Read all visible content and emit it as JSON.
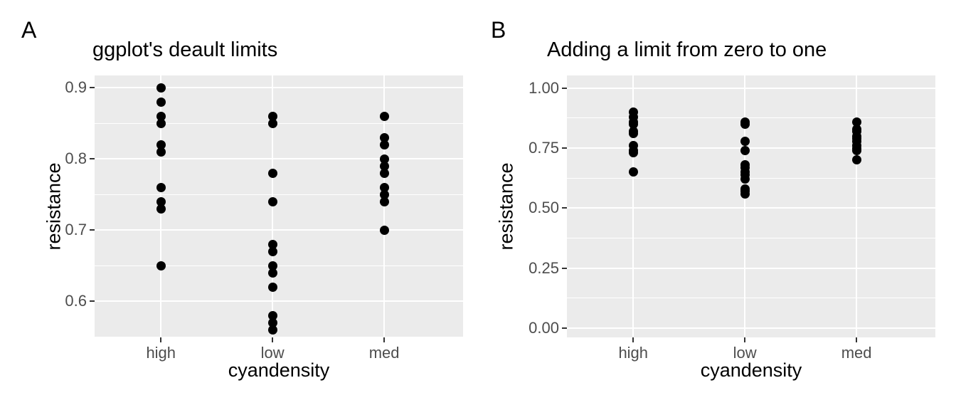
{
  "style": {
    "background": "#FFFFFF",
    "panel_bg": "#EBEBEB",
    "grid_color": "#FFFFFF",
    "point_color": "#000000",
    "tick_label_color": "#4D4D4D",
    "axis_text_color": "#000000",
    "tick_mark_color": "#333333"
  },
  "chart_data": [
    {
      "panel_tag": "A",
      "type": "scatter",
      "title": "ggplot's deault limits",
      "xlabel": "cyandensity",
      "ylabel": "resistance",
      "categories": [
        "high",
        "low",
        "med"
      ],
      "series": [
        {
          "name": "high",
          "values": [
            0.9,
            0.88,
            0.86,
            0.85,
            0.82,
            0.81,
            0.76,
            0.74,
            0.73,
            0.65
          ]
        },
        {
          "name": "low",
          "values": [
            0.86,
            0.85,
            0.78,
            0.74,
            0.68,
            0.67,
            0.65,
            0.64,
            0.62,
            0.58,
            0.57,
            0.56
          ]
        },
        {
          "name": "med",
          "values": [
            0.86,
            0.83,
            0.82,
            0.8,
            0.79,
            0.78,
            0.76,
            0.75,
            0.74,
            0.7
          ]
        }
      ],
      "yticks": [
        0.6,
        0.7,
        0.8,
        0.9
      ],
      "ytick_labels": [
        "0.6",
        "0.7",
        "0.8",
        "0.9"
      ],
      "minor_yticks": [
        0.55,
        0.65,
        0.75,
        0.85
      ],
      "ylim": [
        0.549,
        0.917
      ],
      "grid": true,
      "legend": "none"
    },
    {
      "panel_tag": "B",
      "type": "scatter",
      "title": "Adding a limit from zero to one",
      "xlabel": "cyandensity",
      "ylabel": "resistance",
      "categories": [
        "high",
        "low",
        "med"
      ],
      "series": [
        {
          "name": "high",
          "values": [
            0.9,
            0.88,
            0.86,
            0.85,
            0.82,
            0.81,
            0.76,
            0.74,
            0.73,
            0.65
          ]
        },
        {
          "name": "low",
          "values": [
            0.86,
            0.85,
            0.78,
            0.74,
            0.68,
            0.67,
            0.65,
            0.64,
            0.62,
            0.58,
            0.57,
            0.56
          ]
        },
        {
          "name": "med",
          "values": [
            0.86,
            0.83,
            0.82,
            0.8,
            0.79,
            0.78,
            0.76,
            0.75,
            0.74,
            0.7
          ]
        }
      ],
      "yticks": [
        0.0,
        0.25,
        0.5,
        0.75,
        1.0
      ],
      "ytick_labels": [
        "0.00",
        "0.25",
        "0.50",
        "0.75",
        "1.00"
      ],
      "minor_yticks": [
        0.125,
        0.375,
        0.625,
        0.875
      ],
      "ylim": [
        -0.039,
        1.053
      ],
      "ylim_set": [
        0,
        1
      ],
      "grid": true,
      "legend": "none"
    }
  ]
}
